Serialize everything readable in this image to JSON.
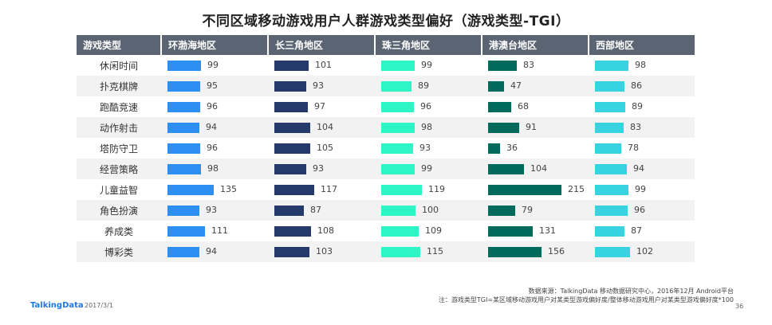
{
  "title": "不同区域移动游戏用户人群游戏类型偏好（游戏类型-TGI）",
  "chart_data": {
    "type": "bar",
    "header": "游戏类型",
    "categories": [
      "休闲时间",
      "扑克棋牌",
      "跑酷竞速",
      "动作射击",
      "塔防守卫",
      "经营策略",
      "儿童益智",
      "角色扮演",
      "养成类",
      "博彩类"
    ],
    "series": [
      {
        "name": "环渤海地区",
        "color": "#2e8ff2",
        "values": [
          99,
          95,
          96,
          94,
          96,
          98,
          135,
          93,
          111,
          94
        ]
      },
      {
        "name": "长三角地区",
        "color": "#26396b",
        "values": [
          101,
          93,
          97,
          104,
          105,
          93,
          117,
          87,
          108,
          103
        ]
      },
      {
        "name": "珠三角地区",
        "color": "#2ef5c6",
        "values": [
          99,
          89,
          96,
          98,
          93,
          99,
          119,
          100,
          109,
          115
        ]
      },
      {
        "name": "港澳台地区",
        "color": "#006b5c",
        "values": [
          83,
          47,
          68,
          91,
          36,
          104,
          215,
          79,
          131,
          156
        ]
      },
      {
        "name": "西部地区",
        "color": "#37d3e0",
        "values": [
          98,
          86,
          89,
          83,
          78,
          94,
          99,
          96,
          87,
          102
        ]
      }
    ],
    "xlim": [
      0,
      250
    ]
  },
  "footer": {
    "source": "数据来源：TalkingData 移动数据研究中心，2016年12月 Android平台",
    "note": "注：游戏类型TGI=某区域移动游戏用户对某类型游戏偏好度/整体移动游戏用户对某类型游戏偏好度*100",
    "brand": "TalkingData",
    "date": "2017/3/1",
    "page": "36"
  }
}
